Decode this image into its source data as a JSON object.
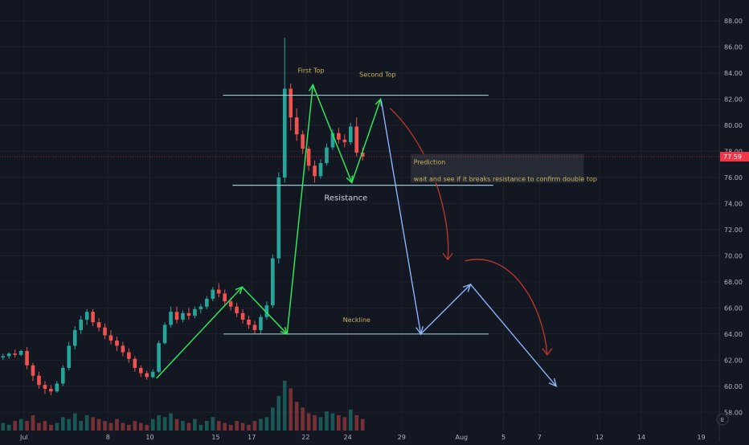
{
  "chart_data": {
    "type": "candlestick",
    "colors": {
      "background": "#131722",
      "grid": "#1e222d",
      "up": "#26a69a",
      "down": "#ef5350",
      "axis_text": "#b2b5be",
      "price_tag": "#f23645",
      "annotation_green": "#2ee65a",
      "annotation_blue": "#8ab4f8",
      "annotation_red": "#c0392b",
      "level_line": "#9bc5d0",
      "label_gold": "#c9b458"
    },
    "y_axis": {
      "ylim": [
        56.6,
        89.6
      ],
      "ticks": [
        "58.00",
        "60.00",
        "62.00",
        "64.00",
        "66.00",
        "68.00",
        "70.00",
        "72.00",
        "74.00",
        "76.00",
        "78.00",
        "80.00",
        "82.00",
        "84.00",
        "86.00",
        "88.00"
      ],
      "tick_values": [
        58,
        60,
        62,
        64,
        66,
        68,
        70,
        72,
        74,
        76,
        78,
        80,
        82,
        84,
        86,
        88
      ]
    },
    "x_axis": {
      "xlim": [
        0,
        120
      ],
      "tick_labels": [
        "Jul",
        "8",
        "10",
        "15",
        "17",
        "22",
        "24",
        "29",
        "Aug",
        "5",
        "7",
        "12",
        "14",
        "19"
      ],
      "tick_positions": [
        4,
        18,
        25,
        36,
        42,
        51,
        58,
        67,
        77,
        84,
        90,
        100,
        107,
        117
      ]
    },
    "current_price": {
      "value": 77.59,
      "label": "77.59"
    },
    "candles": [
      [
        62.2,
        62.5,
        62.0,
        62.3
      ],
      [
        62.3,
        62.6,
        62.1,
        62.5
      ],
      [
        62.5,
        62.8,
        62.2,
        62.4
      ],
      [
        62.4,
        62.8,
        62.3,
        62.7
      ],
      [
        62.7,
        63.0,
        61.3,
        61.6
      ],
      [
        61.6,
        61.8,
        60.4,
        60.8
      ],
      [
        60.8,
        61.1,
        59.8,
        60.1
      ],
      [
        60.1,
        60.4,
        59.4,
        59.8
      ],
      [
        59.8,
        60.1,
        59.3,
        59.6
      ],
      [
        59.6,
        60.4,
        59.5,
        60.2
      ],
      [
        60.2,
        61.6,
        60.0,
        61.4
      ],
      [
        61.4,
        63.4,
        61.2,
        63.1
      ],
      [
        63.1,
        64.6,
        62.8,
        64.3
      ],
      [
        64.3,
        65.4,
        64.0,
        65.1
      ],
      [
        65.1,
        65.9,
        64.7,
        65.7
      ],
      [
        65.7,
        65.9,
        64.6,
        64.9
      ],
      [
        64.9,
        65.2,
        64.2,
        64.5
      ],
      [
        64.5,
        64.8,
        63.6,
        63.9
      ],
      [
        63.9,
        64.3,
        63.2,
        63.5
      ],
      [
        63.5,
        63.8,
        62.7,
        63.1
      ],
      [
        63.1,
        63.4,
        62.3,
        62.6
      ],
      [
        62.6,
        62.9,
        61.8,
        62.1
      ],
      [
        62.1,
        62.3,
        61.1,
        61.4
      ],
      [
        61.4,
        61.6,
        60.7,
        61.0
      ],
      [
        61.0,
        61.2,
        60.5,
        60.7
      ],
      [
        60.7,
        61.3,
        60.6,
        61.1
      ],
      [
        61.1,
        63.5,
        61.0,
        63.3
      ],
      [
        63.3,
        64.9,
        63.2,
        64.7
      ],
      [
        64.7,
        66.1,
        64.5,
        65.7
      ],
      [
        65.7,
        66.1,
        64.8,
        65.1
      ],
      [
        65.1,
        65.8,
        64.9,
        65.6
      ],
      [
        65.6,
        66.0,
        65.1,
        65.4
      ],
      [
        65.4,
        66.1,
        65.2,
        65.9
      ],
      [
        65.9,
        66.3,
        65.6,
        66.1
      ],
      [
        66.1,
        66.9,
        65.9,
        66.7
      ],
      [
        66.7,
        67.6,
        66.5,
        67.4
      ],
      [
        67.4,
        67.9,
        66.8,
        67.1
      ],
      [
        67.1,
        67.4,
        66.2,
        66.5
      ],
      [
        66.5,
        66.8,
        65.8,
        66.1
      ],
      [
        66.1,
        66.4,
        65.3,
        65.6
      ],
      [
        65.6,
        65.9,
        64.8,
        65.1
      ],
      [
        65.1,
        65.4,
        64.4,
        64.7
      ],
      [
        64.7,
        65.0,
        64.0,
        64.3
      ],
      [
        64.3,
        65.5,
        64.0,
        65.3
      ],
      [
        65.3,
        66.5,
        65.1,
        66.2
      ],
      [
        66.2,
        70.1,
        66.0,
        69.8
      ],
      [
        69.8,
        76.4,
        69.4,
        76.0
      ],
      [
        76.0,
        86.7,
        75.6,
        82.8
      ],
      [
        82.8,
        83.2,
        79.6,
        80.6
      ],
      [
        80.6,
        81.3,
        78.8,
        79.3
      ],
      [
        79.3,
        79.6,
        77.8,
        78.2
      ],
      [
        78.2,
        78.4,
        76.5,
        76.9
      ],
      [
        76.9,
        77.3,
        75.6,
        76.1
      ],
      [
        76.1,
        77.4,
        75.9,
        77.1
      ],
      [
        77.1,
        78.6,
        76.9,
        78.3
      ],
      [
        78.3,
        79.7,
        78.1,
        79.4
      ],
      [
        79.4,
        79.8,
        78.6,
        78.9
      ],
      [
        78.9,
        79.3,
        78.3,
        78.7
      ],
      [
        78.7,
        80.2,
        78.5,
        79.9
      ],
      [
        79.9,
        80.6,
        77.6,
        77.9
      ],
      [
        77.9,
        78.3,
        77.3,
        77.6
      ]
    ],
    "volumes": [
      4,
      3,
      5,
      6,
      5,
      8,
      4,
      5,
      3,
      4,
      7,
      6,
      9,
      5,
      8,
      7,
      6,
      5,
      4,
      6,
      4,
      3,
      5,
      4,
      3,
      6,
      8,
      7,
      9,
      6,
      5,
      4,
      6,
      3,
      5,
      7,
      5,
      4,
      3,
      5,
      4,
      3,
      5,
      6,
      7,
      12,
      18,
      26,
      22,
      15,
      12,
      9,
      8,
      7,
      10,
      9,
      8,
      7,
      11,
      8,
      6
    ]
  },
  "annotations": {
    "first_top": "First Top",
    "second_top": "Second Top",
    "resistance": "Resistance",
    "neckline": "Neckline",
    "prediction_title": "Prediction",
    "prediction_text": "wait and see if it breaks resistance to confirm double top",
    "levels": {
      "resistance_top": 82.3,
      "resistance": 75.4,
      "neckline": 64.0
    }
  },
  "footer": {
    "e_badge": "E"
  }
}
